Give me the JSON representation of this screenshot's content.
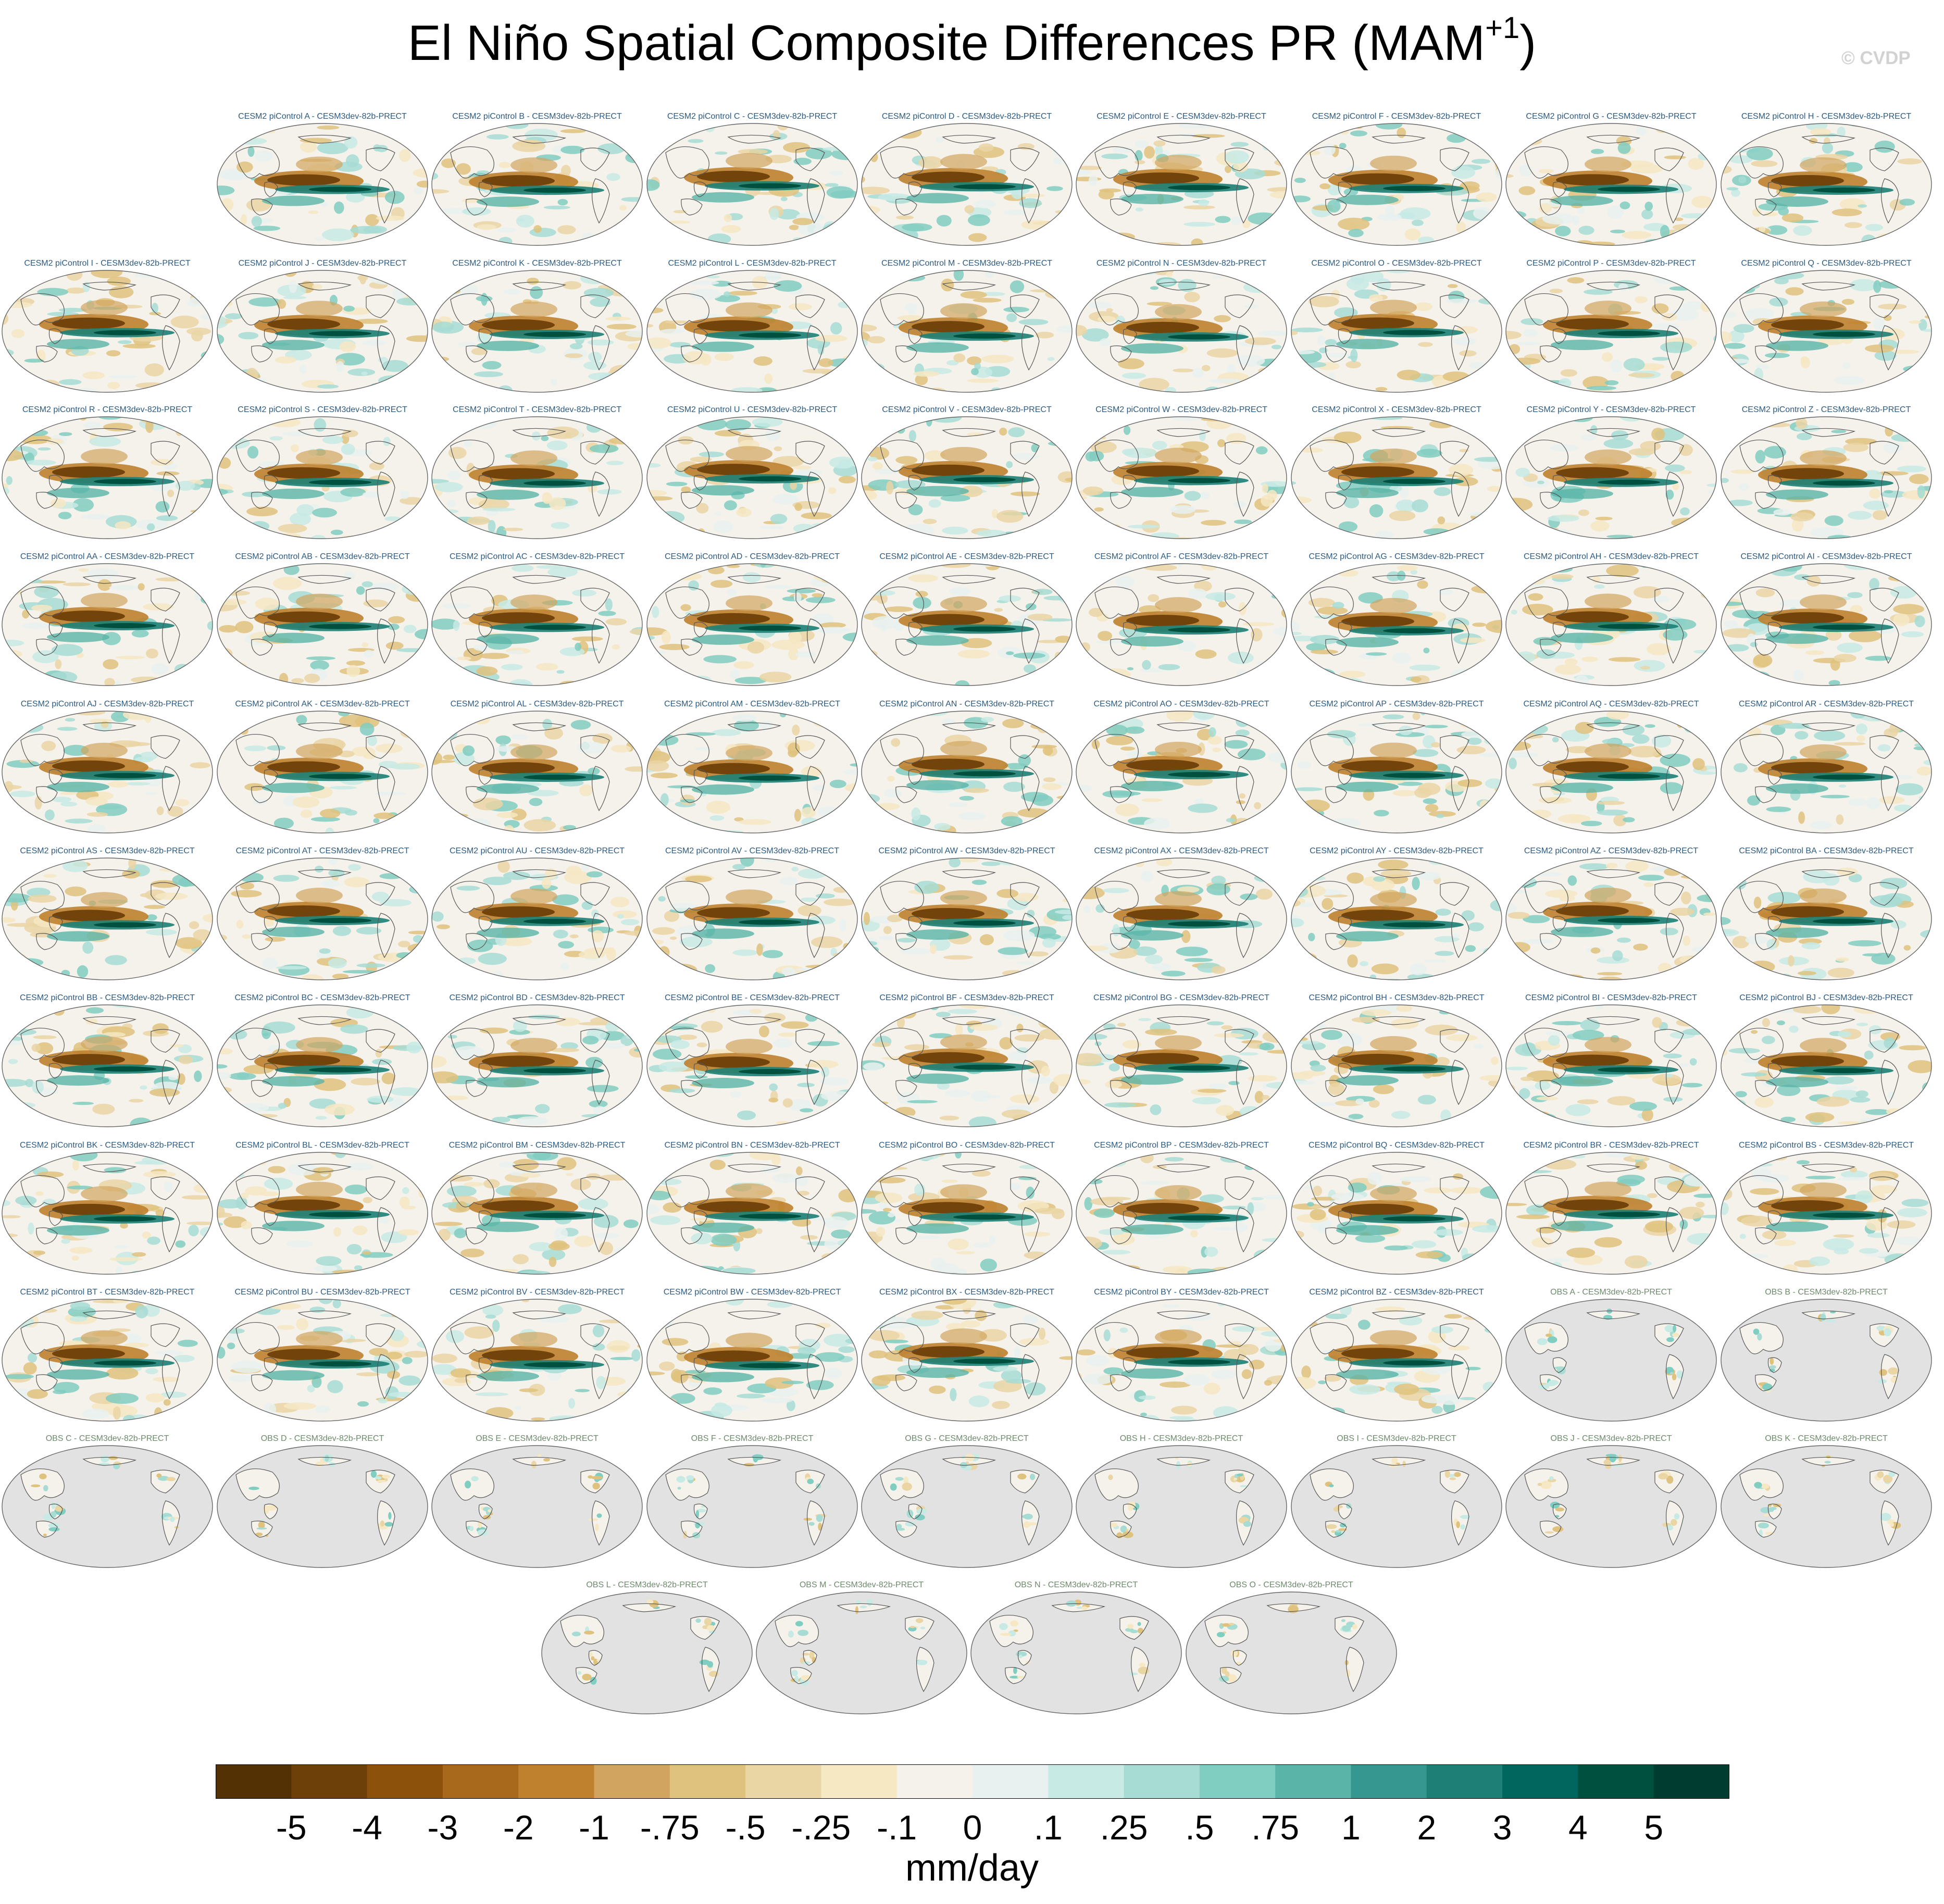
{
  "title": "El Niño Spatial Composite Differences PR (MAM",
  "title_sup": "+1",
  "title_end": ")",
  "copyright": "© CVDP",
  "chart_data": {
    "type": "heatmap",
    "title": "El Niño Spatial Composite Differences PR (MAM+1)",
    "variable": "PR",
    "season": "MAM+1",
    "projection": "global map panels",
    "units": "mm/day",
    "panels": [
      "CESM2 piControl A - CESM3dev-82b-PRECT",
      "CESM2 piControl B - CESM3dev-82b-PRECT",
      "CESM2 piControl C - CESM3dev-82b-PRECT",
      "CESM2 piControl D - CESM3dev-82b-PRECT",
      "CESM2 piControl E - CESM3dev-82b-PRECT",
      "CESM2 piControl F - CESM3dev-82b-PRECT",
      "CESM2 piControl G - CESM3dev-82b-PRECT",
      "CESM2 piControl H - CESM3dev-82b-PRECT",
      "CESM2 piControl I - CESM3dev-82b-PRECT",
      "CESM2 piControl J - CESM3dev-82b-PRECT",
      "CESM2 piControl K - CESM3dev-82b-PRECT",
      "CESM2 piControl L - CESM3dev-82b-PRECT",
      "CESM2 piControl M - CESM3dev-82b-PRECT",
      "CESM2 piControl N - CESM3dev-82b-PRECT",
      "CESM2 piControl O - CESM3dev-82b-PRECT",
      "CESM2 piControl P - CESM3dev-82b-PRECT",
      "CESM2 piControl Q - CESM3dev-82b-PRECT",
      "CESM2 piControl R - CESM3dev-82b-PRECT",
      "CESM2 piControl S - CESM3dev-82b-PRECT",
      "CESM2 piControl T - CESM3dev-82b-PRECT",
      "CESM2 piControl U - CESM3dev-82b-PRECT",
      "CESM2 piControl V - CESM3dev-82b-PRECT",
      "CESM2 piControl W - CESM3dev-82b-PRECT",
      "CESM2 piControl X - CESM3dev-82b-PRECT",
      "CESM2 piControl Y - CESM3dev-82b-PRECT",
      "CESM2 piControl Z - CESM3dev-82b-PRECT",
      "CESM2 piControl AA - CESM3dev-82b-PRECT",
      "CESM2 piControl AB - CESM3dev-82b-PRECT",
      "CESM2 piControl AC - CESM3dev-82b-PRECT",
      "CESM2 piControl AD - CESM3dev-82b-PRECT",
      "CESM2 piControl AE - CESM3dev-82b-PRECT",
      "CESM2 piControl AF - CESM3dev-82b-PRECT",
      "CESM2 piControl AG - CESM3dev-82b-PRECT",
      "CESM2 piControl AH - CESM3dev-82b-PRECT",
      "CESM2 piControl AI - CESM3dev-82b-PRECT",
      "CESM2 piControl AJ - CESM3dev-82b-PRECT",
      "CESM2 piControl AK - CESM3dev-82b-PRECT",
      "CESM2 piControl AL - CESM3dev-82b-PRECT",
      "CESM2 piControl AM - CESM3dev-82b-PRECT",
      "CESM2 piControl AN - CESM3dev-82b-PRECT",
      "CESM2 piControl AO - CESM3dev-82b-PRECT",
      "CESM2 piControl AP - CESM3dev-82b-PRECT",
      "CESM2 piControl AQ - CESM3dev-82b-PRECT",
      "CESM2 piControl AR - CESM3dev-82b-PRECT",
      "CESM2 piControl AS - CESM3dev-82b-PRECT",
      "CESM2 piControl AT - CESM3dev-82b-PRECT",
      "CESM2 piControl AU - CESM3dev-82b-PRECT",
      "CESM2 piControl AV - CESM3dev-82b-PRECT",
      "CESM2 piControl AW - CESM3dev-82b-PRECT",
      "CESM2 piControl AX - CESM3dev-82b-PRECT",
      "CESM2 piControl AY - CESM3dev-82b-PRECT",
      "CESM2 piControl AZ - CESM3dev-82b-PRECT",
      "CESM2 piControl BA - CESM3dev-82b-PRECT",
      "CESM2 piControl BB - CESM3dev-82b-PRECT",
      "CESM2 piControl BC - CESM3dev-82b-PRECT",
      "CESM2 piControl BD - CESM3dev-82b-PRECT",
      "CESM2 piControl BE - CESM3dev-82b-PRECT",
      "CESM2 piControl BF - CESM3dev-82b-PRECT",
      "CESM2 piControl BG - CESM3dev-82b-PRECT",
      "CESM2 piControl BH - CESM3dev-82b-PRECT",
      "CESM2 piControl BI - CESM3dev-82b-PRECT",
      "CESM2 piControl BJ - CESM3dev-82b-PRECT",
      "CESM2 piControl BK - CESM3dev-82b-PRECT",
      "CESM2 piControl BL - CESM3dev-82b-PRECT",
      "CESM2 piControl BM - CESM3dev-82b-PRECT",
      "CESM2 piControl BN - CESM3dev-82b-PRECT",
      "CESM2 piControl BO - CESM3dev-82b-PRECT",
      "CESM2 piControl BP - CESM3dev-82b-PRECT",
      "CESM2 piControl BQ - CESM3dev-82b-PRECT",
      "CESM2 piControl BR - CESM3dev-82b-PRECT",
      "CESM2 piControl BS - CESM3dev-82b-PRECT",
      "CESM2 piControl BT - CESM3dev-82b-PRECT",
      "CESM2 piControl BU - CESM3dev-82b-PRECT",
      "CESM2 piControl BV - CESM3dev-82b-PRECT",
      "CESM2 piControl BW - CESM3dev-82b-PRECT",
      "CESM2 piControl BX - CESM3dev-82b-PRECT",
      "CESM2 piControl BY - CESM3dev-82b-PRECT",
      "CESM2 piControl BZ - CESM3dev-82b-PRECT",
      "OBS A - CESM3dev-82b-PRECT",
      "OBS B - CESM3dev-82b-PRECT",
      "OBS C - CESM3dev-82b-PRECT",
      "OBS D - CESM3dev-82b-PRECT",
      "OBS E - CESM3dev-82b-PRECT",
      "OBS F - CESM3dev-82b-PRECT",
      "OBS G - CESM3dev-82b-PRECT",
      "OBS H - CESM3dev-82b-PRECT",
      "OBS I - CESM3dev-82b-PRECT",
      "OBS J - CESM3dev-82b-PRECT",
      "OBS K - CESM3dev-82b-PRECT",
      "OBS L - CESM3dev-82b-PRECT",
      "OBS M - CESM3dev-82b-PRECT",
      "OBS N - CESM3dev-82b-PRECT",
      "OBS O - CESM3dev-82b-PRECT"
    ],
    "colorbar": {
      "label": "mm/day",
      "levels": [
        "-5",
        "-4",
        "-3",
        "-2",
        "-1",
        "-.75",
        "-.5",
        "-.25",
        "-.1",
        "0",
        ".1",
        ".25",
        ".5",
        ".75",
        "1",
        "2",
        "3",
        "4",
        "5"
      ],
      "colors": [
        "#543005",
        "#6e4009",
        "#8c510a",
        "#a8691c",
        "#bf812d",
        "#d1a55f",
        "#dfc27d",
        "#ead5a5",
        "#f6e8c3",
        "#f5f2ec",
        "#e8f1ef",
        "#c7eae5",
        "#a6dcd3",
        "#80cdc1",
        "#5ab4a8",
        "#35978f",
        "#1d7f76",
        "#01665e",
        "#00503f",
        "#003c30"
      ]
    },
    "data_note_colors": {
      "ocean_observations_missing": "#e2e2e2",
      "coastline": "#555555"
    }
  }
}
